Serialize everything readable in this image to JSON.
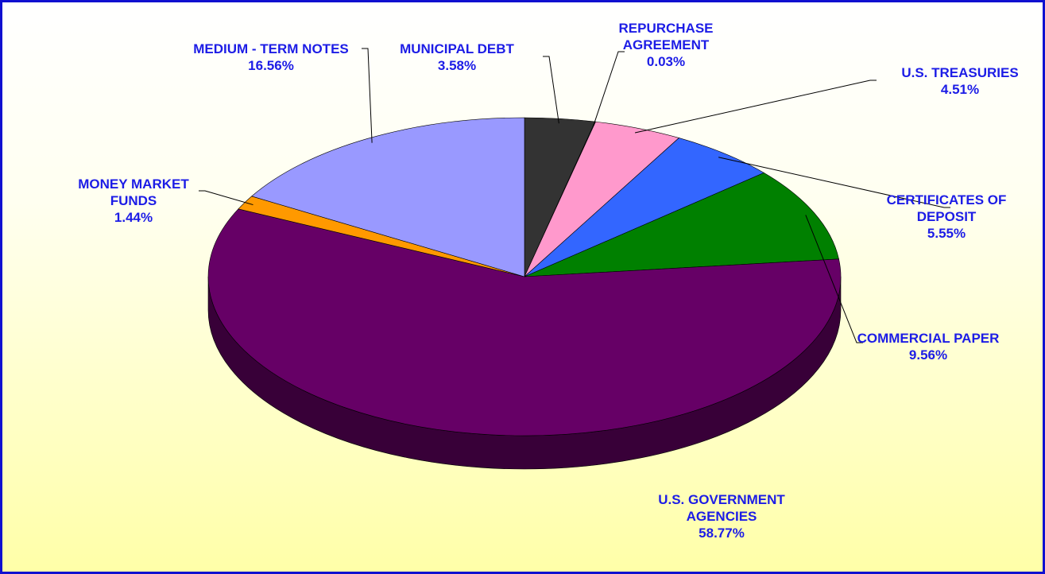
{
  "chart_data": {
    "type": "pie",
    "categories": [
      "MUNICIPAL DEBT",
      "REPURCHASE AGREEMENT",
      "U.S. TREASURIES",
      "CERTIFICATES OF DEPOSIT",
      "COMMERCIAL PAPER",
      "U.S. GOVERNMENT AGENCIES",
      "MONEY MARKET FUNDS",
      "MEDIUM - TERM NOTES"
    ],
    "values": [
      3.58,
      0.03,
      4.51,
      5.55,
      9.56,
      58.77,
      1.44,
      16.56
    ],
    "value_labels": [
      "3.58%",
      "0.03%",
      "4.51%",
      "5.55%",
      "9.56%",
      "58.77%",
      "1.44%",
      "16.56%"
    ],
    "colors": [
      "#333333",
      "#00ffff",
      "#ff99cc",
      "#3366ff",
      "#008000",
      "#660066",
      "#ff9900",
      "#9999ff"
    ]
  }
}
